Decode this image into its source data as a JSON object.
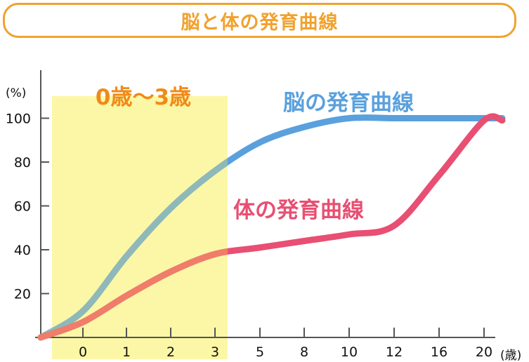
{
  "chart_data": {
    "type": "line",
    "title": "脳と体の発育曲線",
    "ylabel_unit": "(%)",
    "xlabel_unit": "(歳)",
    "highlight_label": "0歳〜3歳",
    "x_ticks": [
      "0",
      "1",
      "2",
      "3",
      "5",
      "8",
      "10",
      "12",
      "16",
      "20"
    ],
    "y_ticks": [
      20,
      40,
      60,
      80,
      100
    ],
    "ylim": [
      0,
      100
    ],
    "series": [
      {
        "name": "脳の発育曲線",
        "color": "#5aa0dd",
        "points": [
          {
            "x": "0",
            "y": 12
          },
          {
            "x": "1",
            "y": 37
          },
          {
            "x": "2",
            "y": 59
          },
          {
            "x": "3",
            "y": 76
          },
          {
            "x": "5",
            "y": 89
          },
          {
            "x": "8",
            "y": 96
          },
          {
            "x": "10",
            "y": 100
          },
          {
            "x": "12",
            "y": 100
          },
          {
            "x": "16",
            "y": 100
          },
          {
            "x": "20",
            "y": 100
          }
        ]
      },
      {
        "name": "体の発育曲線",
        "color": "#e84f72",
        "points": [
          {
            "x": "0",
            "y": 7
          },
          {
            "x": "1",
            "y": 19
          },
          {
            "x": "2",
            "y": 30
          },
          {
            "x": "3",
            "y": 38
          },
          {
            "x": "5",
            "y": 41
          },
          {
            "x": "8",
            "y": 44
          },
          {
            "x": "10",
            "y": 47
          },
          {
            "x": "12",
            "y": 51
          },
          {
            "x": "16",
            "y": 74
          },
          {
            "x": "20",
            "y": 99
          }
        ]
      }
    ],
    "colors": {
      "title": "#f0a22e",
      "highlight_fill": "#fbf7a6",
      "highlight_text": "#f08a18",
      "brain": "#5aa0dd",
      "brain_in_highlight": "#8fb8b9",
      "body": "#e84f72",
      "body_in_highlight": "#ef7d6a",
      "axis": "#555555"
    }
  }
}
